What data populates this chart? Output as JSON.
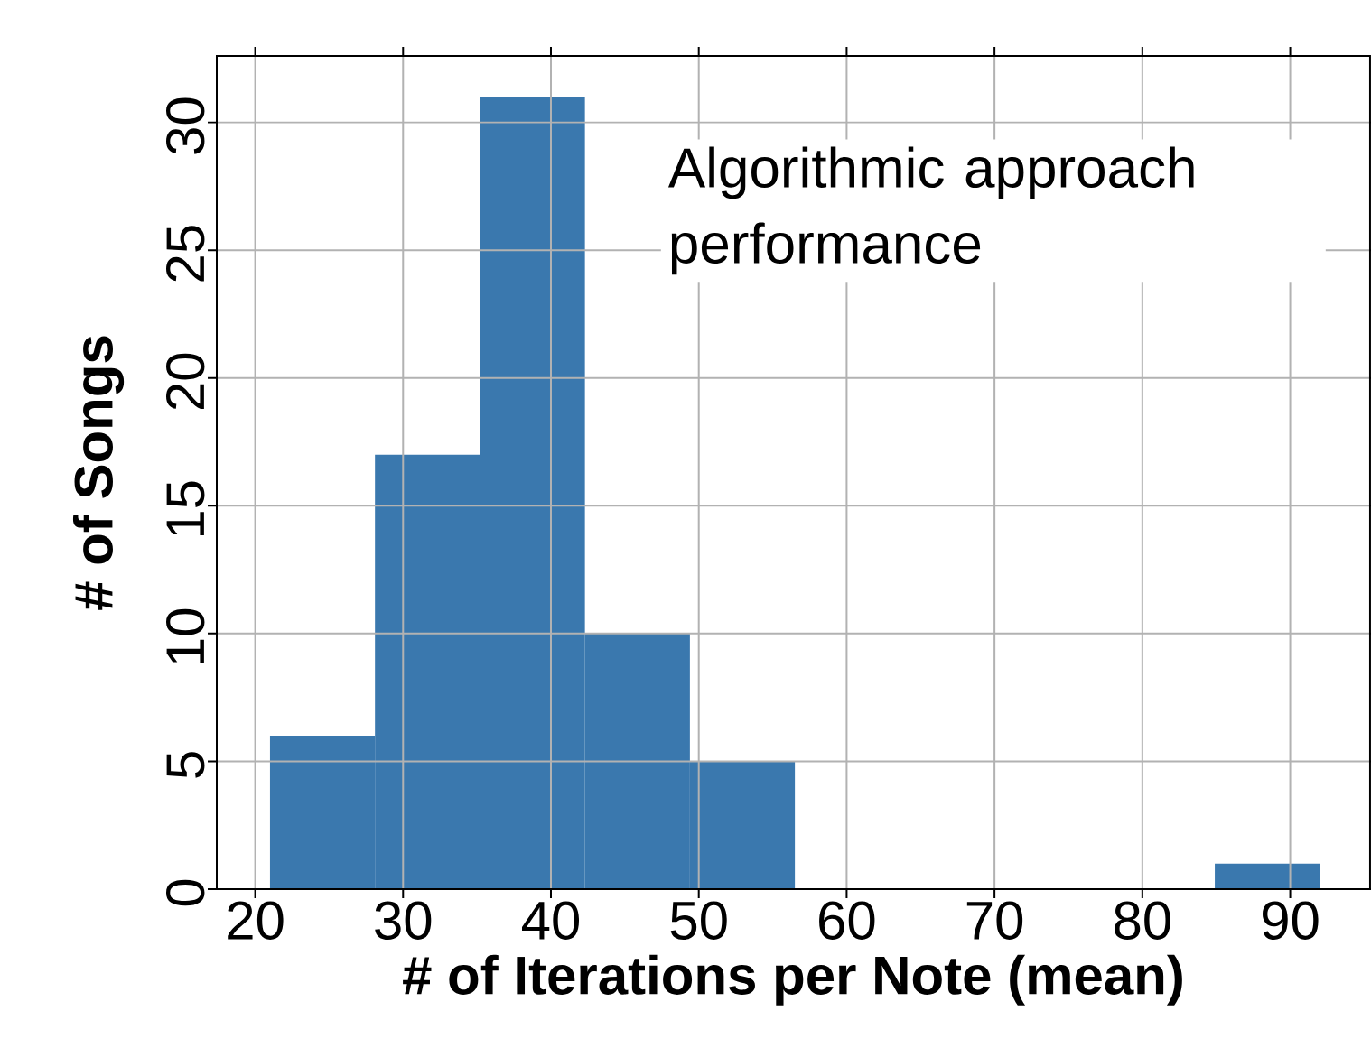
{
  "chart_data": {
    "type": "histogram",
    "xlabel": "# of Iterations per Note (mean)",
    "ylabel": "# of Songs",
    "bins": [
      21.0,
      28.1,
      35.2,
      42.3,
      49.4,
      56.5,
      63.6,
      70.7,
      77.8,
      84.9,
      92.0
    ],
    "values": [
      6,
      17,
      31,
      10,
      5,
      0,
      0,
      0,
      0,
      1
    ],
    "color": "#3a78ae",
    "xlim": [
      17.4,
      95.4
    ],
    "xticks": [
      20,
      30,
      40,
      50,
      60,
      70,
      80,
      90
    ],
    "ylim": [
      0,
      32.6
    ],
    "yticks": [
      0,
      5,
      10,
      15,
      20,
      25,
      30
    ],
    "grid": true,
    "annotations": [
      "Algorithmic approach performance"
    ]
  }
}
